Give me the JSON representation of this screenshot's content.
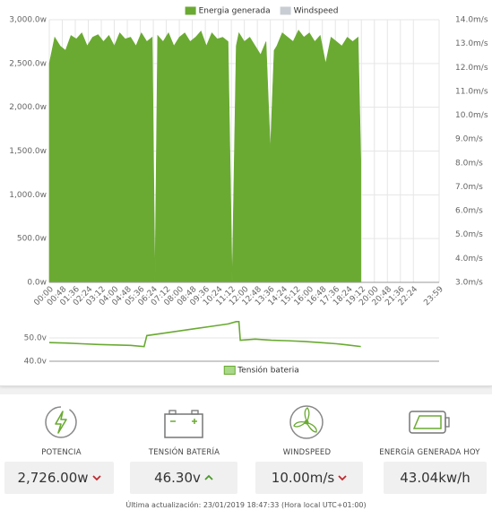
{
  "chart_data": [
    {
      "type": "area",
      "series": [
        {
          "name": "Energia generada",
          "color": "#6aaa32",
          "x": [
            0,
            20,
            40,
            60,
            80,
            100,
            120,
            140,
            160,
            180,
            200,
            220,
            240,
            260,
            280,
            300,
            320,
            340,
            360,
            380,
            390,
            400,
            420,
            440,
            460,
            480,
            500,
            520,
            540,
            560,
            580,
            600,
            620,
            640,
            660,
            675,
            690,
            700,
            720,
            740,
            760,
            780,
            800,
            816,
            830,
            840,
            860,
            880,
            900,
            920,
            940,
            960,
            980,
            1000,
            1020,
            1040,
            1060,
            1080,
            1100,
            1120,
            1140,
            1150
          ],
          "values": [
            2500,
            2800,
            2700,
            2650,
            2820,
            2780,
            2850,
            2700,
            2800,
            2830,
            2750,
            2820,
            2700,
            2850,
            2780,
            2800,
            2700,
            2850,
            2750,
            2800,
            0,
            2820,
            2750,
            2850,
            2700,
            2800,
            2850,
            2750,
            2800,
            2870,
            2700,
            2850,
            2780,
            2800,
            2750,
            0,
            2700,
            2850,
            2750,
            2800,
            2700,
            2600,
            2750,
            1500,
            2650,
            2700,
            2850,
            2800,
            2750,
            2880,
            2800,
            2850,
            2750,
            2820,
            2500,
            2800,
            2750,
            2700,
            2800,
            2750,
            2800,
            1400
          ]
        },
        {
          "name": "Windspeed",
          "color": "#c8cdd3",
          "axis": "y2",
          "x": [
            0,
            1439
          ],
          "values": [
            null,
            null
          ]
        }
      ],
      "xlim": [
        0,
        1439
      ],
      "xticks": [
        {
          "value": 0,
          "label": "00:00"
        },
        {
          "value": 48,
          "label": "00:48"
        },
        {
          "value": 96,
          "label": "01:36"
        },
        {
          "value": 144,
          "label": "02:24"
        },
        {
          "value": 192,
          "label": "03:12"
        },
        {
          "value": 240,
          "label": "04:00"
        },
        {
          "value": 288,
          "label": "04:48"
        },
        {
          "value": 336,
          "label": "05:36"
        },
        {
          "value": 384,
          "label": "06:24"
        },
        {
          "value": 432,
          "label": "07:12"
        },
        {
          "value": 480,
          "label": "08:00"
        },
        {
          "value": 528,
          "label": "08:48"
        },
        {
          "value": 576,
          "label": "09:36"
        },
        {
          "value": 624,
          "label": "10:24"
        },
        {
          "value": 672,
          "label": "11:12"
        },
        {
          "value": 720,
          "label": "12:00"
        },
        {
          "value": 768,
          "label": "12:48"
        },
        {
          "value": 816,
          "label": "13:36"
        },
        {
          "value": 864,
          "label": "14:24"
        },
        {
          "value": 912,
          "label": "15:12"
        },
        {
          "value": 960,
          "label": "16:00"
        },
        {
          "value": 1008,
          "label": "16:48"
        },
        {
          "value": 1056,
          "label": "17:36"
        },
        {
          "value": 1104,
          "label": "18:24"
        },
        {
          "value": 1152,
          "label": "19:12"
        },
        {
          "value": 1200,
          "label": "20:00"
        },
        {
          "value": 1248,
          "label": "20:48"
        },
        {
          "value": 1296,
          "label": "21:36"
        },
        {
          "value": 1344,
          "label": "22:24"
        },
        {
          "value": 1439,
          "label": "23:59"
        }
      ],
      "ylim": [
        0,
        3000
      ],
      "yticks": [
        {
          "value": 0,
          "label": "0.0w"
        },
        {
          "value": 500,
          "label": "500.0w"
        },
        {
          "value": 1000,
          "label": "1,000.0w"
        },
        {
          "value": 1500,
          "label": "1,500.0w"
        },
        {
          "value": 2000,
          "label": "2,000.0w"
        },
        {
          "value": 2500,
          "label": "2,500.0w"
        },
        {
          "value": 3000,
          "label": "3,000.0w"
        }
      ],
      "y2lim": [
        3,
        14
      ],
      "y2ticks": [
        {
          "value": 3,
          "label": "3.0m/s"
        },
        {
          "value": 4,
          "label": "4.0m/s"
        },
        {
          "value": 5,
          "label": "5.0m/s"
        },
        {
          "value": 6,
          "label": "6.0m/s"
        },
        {
          "value": 7,
          "label": "7.0m/s"
        },
        {
          "value": 8,
          "label": "8.0m/s"
        },
        {
          "value": 9,
          "label": "9.0m/s"
        },
        {
          "value": 10,
          "label": "10.0m/s"
        },
        {
          "value": 11,
          "label": "11.0m/s"
        },
        {
          "value": 12,
          "label": "12.0m/s"
        },
        {
          "value": 13,
          "label": "13.0m/s"
        },
        {
          "value": 14,
          "label": "14.0m/s"
        }
      ],
      "grid": true,
      "legend": "top"
    },
    {
      "type": "line",
      "series": [
        {
          "name": "Tensión bateria",
          "color": "#6aaa32",
          "x": [
            0,
            60,
            120,
            180,
            240,
            300,
            350,
            360,
            420,
            480,
            540,
            600,
            660,
            690,
            700,
            705,
            760,
            820,
            880,
            940,
            1000,
            1060,
            1100,
            1150
          ],
          "values": [
            48,
            47.8,
            47.5,
            47.2,
            47,
            46.8,
            46.3,
            51,
            52,
            53,
            54,
            55,
            56,
            57,
            57,
            49,
            49.5,
            49,
            48.8,
            48.5,
            48,
            47.5,
            47,
            46.3
          ]
        }
      ],
      "xlim": [
        0,
        1439
      ],
      "ylim": [
        40,
        60
      ],
      "yticks": [
        {
          "value": 40,
          "label": "40.0v"
        },
        {
          "value": 50,
          "label": "50.0v"
        }
      ],
      "grid": true,
      "legend": "bottom"
    }
  ],
  "cards": [
    {
      "label": "POTENCIA",
      "value": "2,726.00w"
    },
    {
      "label": "TENSIÓN BATERÍA",
      "value": "46.30v"
    },
    {
      "label": "WINDSPEED",
      "value": "10.00m/s"
    },
    {
      "label": "ENERGÍA GENERADA HOY",
      "value": "43.04kw/h"
    }
  ],
  "footer": "Última actualización: 23/01/2019 18:47:33 (Hora local UTC+01:00)"
}
